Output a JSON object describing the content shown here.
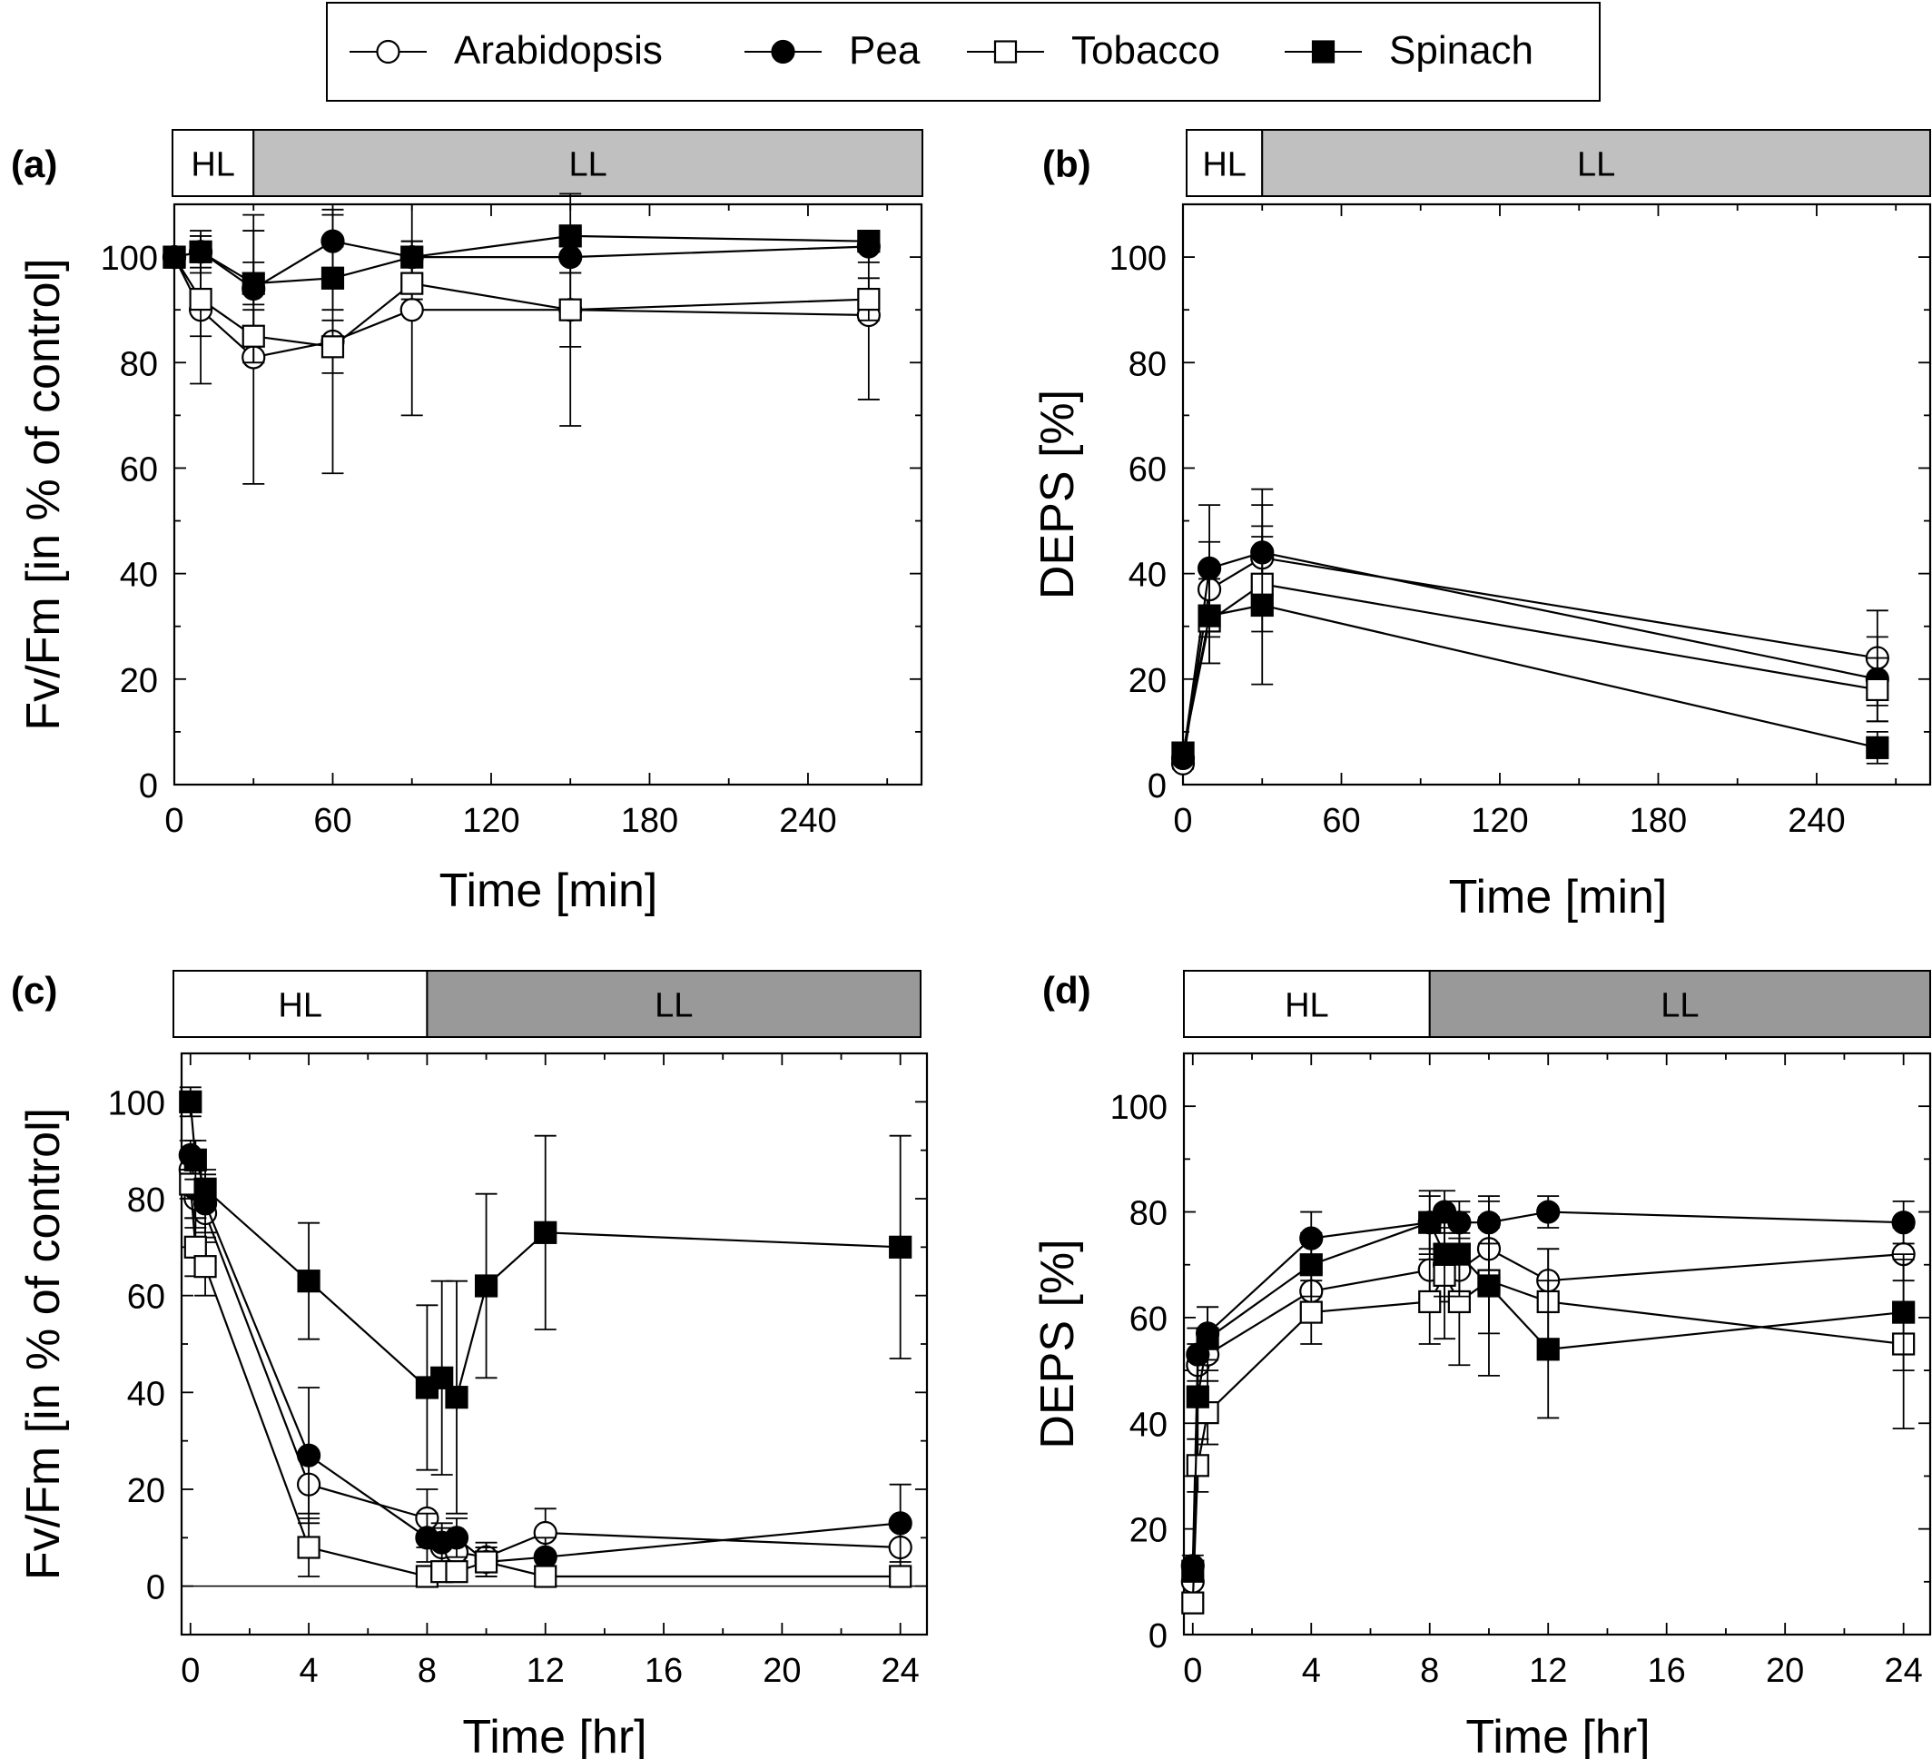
{
  "legend": [
    {
      "name": "Arabidopsis",
      "marker": "circle",
      "fill": "#ffffff"
    },
    {
      "name": "Pea",
      "marker": "circle",
      "fill": "#000000"
    },
    {
      "name": "Tobacco",
      "marker": "square",
      "fill": "#ffffff"
    },
    {
      "name": "Spinach",
      "marker": "square",
      "fill": "#000000"
    }
  ],
  "colors": {
    "hl_bar": "#ffffff",
    "ll_bar_min": "#c0c0c0",
    "ll_bar_hr": "#999999",
    "line": "#000000"
  },
  "chart_data": [
    {
      "panel_label": "(a)",
      "type": "line",
      "xlabel": "Time [min]",
      "ylabel": "Fv/Fm [in % of control]",
      "xlim": [
        0,
        283
      ],
      "ylim": [
        0,
        110
      ],
      "xticks": [
        0,
        60,
        120,
        180,
        240
      ],
      "yticks": [
        0,
        20,
        40,
        60,
        80,
        100
      ],
      "bar": {
        "hl_label": "HL",
        "ll_label": "LL",
        "hl_end": 30
      },
      "series": [
        {
          "name": "Arabidopsis",
          "x": [
            0,
            10,
            30,
            60,
            90,
            150,
            263
          ],
          "y": [
            100,
            90,
            81,
            84,
            90,
            90,
            89
          ],
          "err": [
            2,
            14,
            24,
            25,
            20,
            22,
            16
          ]
        },
        {
          "name": "Pea",
          "x": [
            0,
            10,
            30,
            60,
            90,
            150,
            263
          ],
          "y": [
            100,
            101,
            94,
            103,
            100,
            100,
            102
          ],
          "err": [
            2,
            4,
            14,
            5,
            3,
            3,
            3
          ]
        },
        {
          "name": "Tobacco",
          "x": [
            0,
            10,
            30,
            60,
            90,
            150,
            263
          ],
          "y": [
            100,
            92,
            85,
            83,
            95,
            90,
            92
          ],
          "err": [
            2,
            7,
            5,
            5,
            3,
            7,
            4
          ]
        },
        {
          "name": "Spinach",
          "x": [
            0,
            10,
            30,
            60,
            90,
            150,
            263
          ],
          "y": [
            100,
            101,
            95,
            96,
            100,
            104,
            103
          ],
          "err": [
            2,
            3,
            4,
            6,
            3,
            2,
            2
          ]
        }
      ]
    },
    {
      "panel_label": "(b)",
      "type": "line",
      "xlabel": "Time [min]",
      "ylabel": "DEPS [%]",
      "xlim": [
        0,
        283
      ],
      "ylim": [
        0,
        110
      ],
      "xticks": [
        0,
        60,
        120,
        180,
        240
      ],
      "yticks": [
        0,
        20,
        40,
        60,
        80,
        100
      ],
      "bar": {
        "hl_label": "HL",
        "ll_label": "LL",
        "hl_end": 30
      },
      "series": [
        {
          "name": "Arabidopsis",
          "x": [
            0,
            10,
            30,
            263
          ],
          "y": [
            4,
            37,
            43,
            24
          ],
          "err": [
            1,
            9,
            10,
            9
          ]
        },
        {
          "name": "Pea",
          "x": [
            0,
            10,
            30,
            263
          ],
          "y": [
            5,
            41,
            44,
            20
          ],
          "err": [
            1,
            12,
            12,
            8
          ]
        },
        {
          "name": "Tobacco",
          "x": [
            0,
            10,
            30,
            263
          ],
          "y": [
            6,
            31,
            38,
            18
          ],
          "err": [
            1,
            8,
            9,
            6
          ]
        },
        {
          "name": "Spinach",
          "x": [
            0,
            10,
            30,
            263
          ],
          "y": [
            6,
            32,
            34,
            7
          ],
          "err": [
            1,
            9,
            15,
            3
          ]
        }
      ]
    },
    {
      "panel_label": "(c)",
      "type": "line",
      "xlabel": "Time [hr]",
      "ylabel": "Fv/Fm [in % of control]",
      "xlim": [
        -0.3,
        24.9
      ],
      "ylim": [
        -10,
        110
      ],
      "xticks": [
        0,
        4,
        8,
        12,
        16,
        20,
        24
      ],
      "xtick_labels": [
        "0",
        "4",
        "8",
        "12",
        "16",
        "20",
        "24"
      ],
      "yticks": [
        0,
        20,
        40,
        60,
        80,
        100
      ],
      "zero_line": true,
      "bar": {
        "hl_label": "HL",
        "ll_label": "LL",
        "hl_end": 8
      },
      "series": [
        {
          "name": "Arabidopsis",
          "x": [
            0,
            0.17,
            0.5,
            4,
            8,
            8.5,
            9,
            10,
            12,
            24
          ],
          "y": [
            86,
            80,
            77,
            21,
            14,
            8,
            7,
            6,
            11,
            8
          ],
          "err": [
            3,
            6,
            6,
            6,
            6,
            4,
            3,
            3,
            5,
            4
          ]
        },
        {
          "name": "Pea",
          "x": [
            0,
            0.17,
            0.5,
            4,
            8,
            8.5,
            9,
            10,
            12,
            24
          ],
          "y": [
            89,
            82,
            79,
            27,
            10,
            9,
            10,
            5,
            6,
            13
          ],
          "err": [
            3,
            6,
            6,
            14,
            5,
            4,
            4,
            3,
            4,
            8
          ]
        },
        {
          "name": "Tobacco",
          "x": [
            0,
            0.17,
            0.5,
            4,
            8,
            8.5,
            9,
            10,
            12,
            24
          ],
          "y": [
            83,
            70,
            66,
            8,
            2,
            3,
            3,
            5,
            2,
            2
          ],
          "err": [
            3,
            6,
            6,
            6,
            2,
            2,
            2,
            3,
            2,
            2
          ]
        },
        {
          "name": "Spinach",
          "x": [
            0,
            0.17,
            0.5,
            4,
            8,
            8.5,
            9,
            10,
            12,
            24
          ],
          "y": [
            100,
            88,
            82,
            63,
            41,
            43,
            39,
            62,
            73,
            70
          ],
          "err": [
            3,
            4,
            4,
            12,
            17,
            20,
            24,
            19,
            20,
            23
          ]
        }
      ]
    },
    {
      "panel_label": "(d)",
      "type": "line",
      "xlabel": "Time [hr]",
      "ylabel": "DEPS [%]",
      "xlim": [
        -0.3,
        24.9
      ],
      "ylim": [
        0,
        110
      ],
      "xticks": [
        0,
        4,
        8,
        12,
        16,
        20,
        24
      ],
      "xtick_labels": [
        "0",
        "4",
        "8",
        "12",
        "16",
        "20",
        "24"
      ],
      "yticks": [
        0,
        20,
        40,
        60,
        80,
        100
      ],
      "bar": {
        "hl_label": "HL",
        "ll_label": "LL",
        "hl_end": 8
      },
      "series": [
        {
          "name": "Arabidopsis",
          "x": [
            0,
            0.17,
            0.5,
            4,
            8,
            8.5,
            9,
            10,
            12,
            24
          ],
          "y": [
            10,
            51,
            53,
            65,
            69,
            70,
            69,
            73,
            67,
            72
          ],
          "err": [
            2,
            4,
            5,
            5,
            8,
            7,
            7,
            6,
            6,
            5
          ]
        },
        {
          "name": "Pea",
          "x": [
            0,
            0.17,
            0.5,
            4,
            8,
            8.5,
            9,
            10,
            12,
            24
          ],
          "y": [
            13,
            53,
            57,
            75,
            78,
            80,
            78,
            78,
            80,
            78
          ],
          "err": [
            2,
            5,
            5,
            5,
            5,
            4,
            4,
            4,
            3,
            4
          ]
        },
        {
          "name": "Tobacco",
          "x": [
            0,
            0.17,
            0.5,
            4,
            8,
            8.5,
            9,
            10,
            12,
            24
          ],
          "y": [
            6,
            32,
            42,
            61,
            63,
            68,
            63,
            67,
            63,
            55
          ],
          "err": [
            2,
            5,
            6,
            6,
            8,
            12,
            12,
            10,
            10,
            16
          ]
        },
        {
          "name": "Spinach",
          "x": [
            0,
            0.17,
            0.5,
            4,
            8,
            8.5,
            9,
            10,
            12,
            24
          ],
          "y": [
            12,
            45,
            56,
            70,
            78,
            72,
            72,
            66,
            54,
            61
          ],
          "err": [
            2,
            8,
            6,
            6,
            6,
            8,
            8,
            17,
            13,
            11
          ]
        }
      ]
    }
  ]
}
